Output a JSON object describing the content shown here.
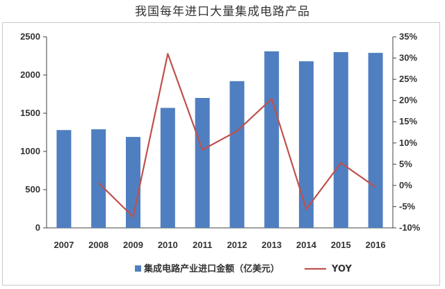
{
  "chart_data": {
    "type": "bar",
    "title": "我国每年进口大量集成电路产品",
    "categories": [
      "2007",
      "2008",
      "2009",
      "2010",
      "2011",
      "2012",
      "2013",
      "2014",
      "2015",
      "2016"
    ],
    "series": [
      {
        "name": "集成电路产业进口金额（亿美元）",
        "type": "bar",
        "axis": "left",
        "values": [
          1280,
          1290,
          1190,
          1570,
          1700,
          1920,
          2310,
          2180,
          2300,
          2290
        ],
        "color": "#4f7fc0"
      },
      {
        "name": "YOY",
        "type": "line",
        "axis": "right",
        "values": [
          null,
          0.6,
          -7.4,
          31.0,
          8.4,
          12.8,
          20.4,
          -5.6,
          5.3,
          -0.4
        ],
        "color": "#c0504d"
      }
    ],
    "y_left": {
      "lim": [
        0,
        2500
      ],
      "ticks": [
        "0",
        "500",
        "1000",
        "1500",
        "2000",
        "2500"
      ]
    },
    "y_right": {
      "lim": [
        -10,
        35
      ],
      "ticks": [
        "-10%",
        "-5%",
        "0%",
        "5%",
        "10%",
        "15%",
        "20%",
        "25%",
        "30%",
        "35%"
      ]
    },
    "legend": {
      "position": "bottom"
    }
  }
}
